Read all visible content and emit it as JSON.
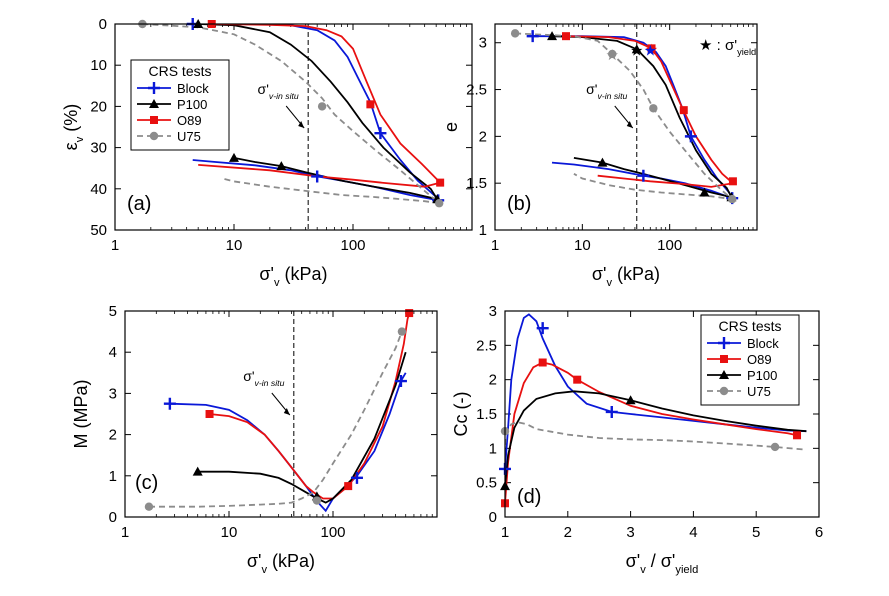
{
  "chart_data": [
    {
      "id": "a",
      "type": "line",
      "panel_label": "(a)",
      "xscale": "log",
      "xlim": [
        1,
        1000
      ],
      "ylim": [
        50,
        0
      ],
      "xticks": [
        1,
        10,
        100
      ],
      "xtick_labels": [
        "1",
        "10",
        "100"
      ],
      "yticks": [
        0,
        10,
        20,
        30,
        40,
        50
      ],
      "ytick_labels": [
        "0",
        "10",
        "20",
        "30",
        "40",
        "50"
      ],
      "xlabel": "σ'",
      "xlabel_sub": "v",
      "xlabel_tail": " (kPa)",
      "ylabel": "ε",
      "ylabel_sub": "v",
      "ylabel_tail": " (%)",
      "legend": {
        "title": "CRS tests",
        "placement": "left-middle"
      },
      "annotation": {
        "text": "σ'",
        "sub": "v-in situ",
        "x": 41
      },
      "vline_x": 42,
      "series": [
        {
          "name": "Block",
          "color": "#0a18d8",
          "dash": "",
          "marker": "plus",
          "x": [
            4.5,
            15,
            30,
            50,
            70,
            90,
            110,
            140,
            170,
            250,
            350,
            500,
            520,
            300,
            150,
            80,
            50,
            30,
            15,
            7,
            4.5
          ],
          "y": [
            0,
            0,
            0.3,
            1.5,
            4,
            8,
            13,
            19,
            26.5,
            33,
            38,
            42,
            42.8,
            41.5,
            39.5,
            38,
            37,
            35.5,
            34.3,
            33.5,
            33
          ],
          "markers_x": [
            4.5,
            170,
            520,
            50
          ],
          "markers_y": [
            0,
            26.5,
            42.8,
            37
          ]
        },
        {
          "name": "P100",
          "color": "#000000",
          "dash": "",
          "marker": "triangle",
          "x": [
            5,
            10,
            20,
            30,
            45,
            65,
            90,
            120,
            180,
            300,
            450,
            510,
            300,
            150,
            80,
            40,
            25,
            15,
            10
          ],
          "y": [
            0,
            0.3,
            2,
            5,
            9,
            14,
            19,
            24,
            30,
            36,
            40,
            42.5,
            41,
            39.5,
            38,
            36,
            34.5,
            33.5,
            32.5
          ],
          "markers_x": [
            5,
            510,
            10,
            25
          ],
          "markers_y": [
            0,
            42.5,
            32.5,
            34.5
          ]
        },
        {
          "name": "O89",
          "color": "#e81010",
          "dash": "",
          "marker": "square",
          "x": [
            6.5,
            20,
            40,
            60,
            80,
            100,
            130,
            170,
            250,
            380,
            540,
            400,
            200,
            100,
            50,
            20,
            5
          ],
          "y": [
            0,
            0.2,
            0.5,
            1.5,
            3,
            6,
            14,
            22,
            29,
            34,
            38.5,
            39.5,
            38.7,
            37.8,
            37,
            35.5,
            34.2
          ],
          "markers_x": [
            6.5,
            140,
            540
          ],
          "markers_y": [
            0,
            19.5,
            38.5
          ]
        },
        {
          "name": "U75",
          "color": "#8c8c8c",
          "dash": "6,4",
          "marker": "circle",
          "x": [
            1.7,
            5,
            10,
            15,
            25,
            40,
            55,
            70,
            100,
            160,
            250,
            400,
            530,
            400,
            250,
            150,
            80,
            40,
            20,
            10,
            8
          ],
          "y": [
            0,
            0.8,
            2.5,
            5,
            9,
            14,
            18,
            22,
            26,
            31,
            35.5,
            40.5,
            43.5,
            43,
            42.5,
            42,
            41.5,
            40.5,
            39.5,
            38.2,
            37.5
          ],
          "markers_x": [
            1.7,
            55,
            530
          ],
          "markers_y": [
            0,
            20,
            43.5
          ]
        }
      ]
    },
    {
      "id": "b",
      "type": "line",
      "panel_label": "(b)",
      "xscale": "log",
      "xlim": [
        1,
        1000
      ],
      "ylim": [
        1,
        3.2
      ],
      "xticks": [
        1,
        10,
        100
      ],
      "xtick_labels": [
        "1",
        "10",
        "100"
      ],
      "yticks": [
        1,
        1.5,
        2,
        2.5,
        3
      ],
      "ytick_labels": [
        "1",
        "1.5",
        "2",
        "2.5",
        "3"
      ],
      "xlabel": "σ'",
      "xlabel_sub": "v",
      "xlabel_tail": " (kPa)",
      "ylabel": "e",
      "ylabel_sub": "",
      "ylabel_tail": "",
      "yield_note": {
        "text": "★ : σ'",
        "sub": "yield"
      },
      "annotation": {
        "text": "σ'",
        "sub": "v-in situ",
        "x": 41
      },
      "vline_x": 42,
      "yield_points": [
        {
          "x": 22,
          "y": 2.88,
          "color": "#8c8c8c"
        },
        {
          "x": 42,
          "y": 2.93,
          "color": "#000000"
        },
        {
          "x": 62,
          "y": 2.94,
          "color": "#e81010"
        },
        {
          "x": 60,
          "y": 2.93,
          "color": "#0a18d8"
        }
      ],
      "series": [
        {
          "name": "Block",
          "color": "#0a18d8",
          "dash": "",
          "marker": "plus",
          "x": [
            2.7,
            10,
            30,
            50,
            70,
            90,
            110,
            140,
            175,
            250,
            350,
            480,
            520,
            300,
            150,
            80,
            50,
            20,
            8,
            4.5
          ],
          "y": [
            3.07,
            3.07,
            3.06,
            3.0,
            2.9,
            2.75,
            2.55,
            2.3,
            2.0,
            1.75,
            1.55,
            1.4,
            1.34,
            1.42,
            1.5,
            1.55,
            1.58,
            1.65,
            1.7,
            1.72
          ],
          "markers_x": [
            2.7,
            175,
            520,
            50
          ],
          "markers_y": [
            3.07,
            2.0,
            1.34,
            1.58
          ]
        },
        {
          "name": "P100",
          "color": "#000000",
          "dash": "",
          "marker": "triangle",
          "x": [
            4.5,
            10,
            25,
            42,
            65,
            90,
            130,
            200,
            300,
            450,
            510,
            300,
            150,
            60,
            30,
            17,
            8
          ],
          "y": [
            3.07,
            3.06,
            3.02,
            2.93,
            2.75,
            2.55,
            2.2,
            1.85,
            1.6,
            1.45,
            1.35,
            1.4,
            1.48,
            1.58,
            1.65,
            1.72,
            1.77
          ],
          "markers_x": [
            4.5,
            42,
            250,
            510,
            17
          ],
          "markers_y": [
            3.07,
            2.93,
            1.4,
            1.35,
            1.72
          ]
        },
        {
          "name": "O89",
          "color": "#e81010",
          "dash": "",
          "marker": "square",
          "x": [
            6.5,
            20,
            40,
            62,
            80,
            100,
            140,
            200,
            300,
            400,
            530,
            300,
            150,
            60,
            30,
            15
          ],
          "y": [
            3.07,
            3.06,
            3.02,
            2.94,
            2.8,
            2.6,
            2.3,
            2.0,
            1.75,
            1.6,
            1.5,
            1.46,
            1.49,
            1.52,
            1.55,
            1.58
          ],
          "markers_x": [
            6.5,
            62,
            145,
            530
          ],
          "markers_y": [
            3.07,
            2.94,
            2.28,
            1.52
          ]
        },
        {
          "name": "U75",
          "color": "#8c8c8c",
          "dash": "6,4",
          "marker": "circle",
          "x": [
            1.7,
            8,
            15,
            22,
            35,
            50,
            65,
            100,
            150,
            250,
            400,
            520,
            300,
            150,
            80,
            40,
            20,
            10,
            8
          ],
          "y": [
            3.1,
            3.07,
            3.02,
            2.88,
            2.7,
            2.5,
            2.3,
            2.05,
            1.85,
            1.6,
            1.42,
            1.33,
            1.36,
            1.38,
            1.4,
            1.43,
            1.48,
            1.55,
            1.6
          ],
          "markers_x": [
            1.7,
            22,
            65,
            520
          ],
          "markers_y": [
            3.1,
            2.88,
            2.3,
            1.33
          ]
        }
      ]
    },
    {
      "id": "c",
      "type": "line",
      "panel_label": "(c)",
      "xscale": "log",
      "xlim": [
        1,
        1000
      ],
      "ylim": [
        0,
        5
      ],
      "xticks": [
        1,
        10,
        100
      ],
      "xtick_labels": [
        "1",
        "10",
        "100"
      ],
      "yticks": [
        0,
        1,
        2,
        3,
        4,
        5
      ],
      "ytick_labels": [
        "0",
        "1",
        "2",
        "3",
        "4",
        "5"
      ],
      "xlabel": "σ'",
      "xlabel_sub": "v",
      "xlabel_tail": " (kPa)",
      "ylabel": "M (MPa)",
      "ylabel_sub": "",
      "ylabel_tail": "",
      "annotation": {
        "text": "σ'",
        "sub": "v-in situ",
        "x": 41
      },
      "vline_x": 42,
      "series": [
        {
          "name": "Block",
          "color": "#0a18d8",
          "dash": "",
          "marker": "plus",
          "x": [
            2.7,
            6,
            10,
            15,
            22,
            30,
            40,
            55,
            65,
            75,
            85,
            100,
            130,
            170,
            250,
            350,
            450,
            500
          ],
          "y": [
            2.75,
            2.72,
            2.6,
            2.35,
            2.0,
            1.6,
            1.2,
            0.75,
            0.5,
            0.3,
            0.15,
            0.45,
            0.7,
            1.0,
            1.6,
            2.5,
            3.3,
            3.5
          ],
          "markers_x": [
            2.7,
            170,
            450
          ],
          "markers_y": [
            2.75,
            0.95,
            3.3
          ]
        },
        {
          "name": "O89",
          "color": "#e81010",
          "dash": "",
          "marker": "square",
          "x": [
            6.5,
            10,
            15,
            22,
            30,
            40,
            55,
            65,
            80,
            100,
            140,
            200,
            300,
            400,
            480,
            520,
            540
          ],
          "y": [
            2.5,
            2.45,
            2.3,
            2.0,
            1.6,
            1.2,
            0.75,
            0.6,
            0.45,
            0.45,
            0.75,
            1.3,
            2.2,
            3.3,
            4.2,
            4.8,
            4.95
          ],
          "markers_x": [
            6.5,
            140,
            540
          ],
          "markers_y": [
            2.5,
            0.75,
            4.95
          ]
        },
        {
          "name": "P100",
          "color": "#000000",
          "dash": "",
          "marker": "triangle",
          "x": [
            5,
            10,
            20,
            30,
            40,
            55,
            70,
            85,
            100,
            150,
            250,
            400,
            500
          ],
          "y": [
            1.1,
            1.1,
            1.05,
            0.95,
            0.8,
            0.6,
            0.45,
            0.35,
            0.45,
            0.9,
            1.9,
            3.2,
            4.0
          ],
          "markers_x": [
            5,
            70
          ],
          "markers_y": [
            1.1,
            0.5
          ]
        },
        {
          "name": "U75",
          "color": "#8c8c8c",
          "dash": "6,4",
          "marker": "circle",
          "x": [
            1.7,
            5,
            10,
            20,
            30,
            40,
            50,
            65,
            80,
            100,
            150,
            200,
            300,
            400,
            460
          ],
          "y": [
            0.25,
            0.25,
            0.27,
            0.3,
            0.32,
            0.35,
            0.45,
            0.6,
            0.9,
            1.3,
            2.0,
            2.6,
            3.5,
            4.1,
            4.5
          ],
          "markers_x": [
            1.7,
            70,
            460
          ],
          "markers_y": [
            0.25,
            0.4,
            4.5
          ]
        }
      ]
    },
    {
      "id": "d",
      "type": "line",
      "panel_label": "(d)",
      "xscale": "linear",
      "xlim": [
        1,
        6
      ],
      "ylim": [
        0,
        3
      ],
      "xticks": [
        1,
        2,
        3,
        4,
        5,
        6
      ],
      "xtick_labels": [
        "1",
        "2",
        "3",
        "4",
        "5",
        "6"
      ],
      "yticks": [
        0,
        0.5,
        1,
        1.5,
        2,
        2.5,
        3
      ],
      "ytick_labels": [
        "0",
        "0.5",
        "1",
        "1.5",
        "2",
        "2.5",
        "3"
      ],
      "xlabel": "σ'",
      "xlabel_sub": "v",
      "xlabel_tail": " / σ'",
      "xlabel_sub2": "yield",
      "ylabel": "Cc (-)",
      "ylabel_sub": "",
      "ylabel_tail": "",
      "legend": {
        "title": "CRS tests",
        "placement": "top-right"
      },
      "series": [
        {
          "name": "Block",
          "color": "#0a18d8",
          "dash": "",
          "marker": "plus",
          "x": [
            1.0,
            1.05,
            1.1,
            1.2,
            1.3,
            1.38,
            1.5,
            1.6,
            1.8,
            2.0,
            2.3,
            2.7,
            3.0,
            3.5,
            4.0,
            4.5,
            5.0,
            5.5,
            5.8
          ],
          "y": [
            0.7,
            1.3,
            2.0,
            2.6,
            2.9,
            2.95,
            2.85,
            2.6,
            2.2,
            1.9,
            1.65,
            1.53,
            1.5,
            1.45,
            1.4,
            1.35,
            1.3,
            1.26,
            1.25
          ],
          "markers_x": [
            1.0,
            1.6,
            2.7
          ],
          "markers_y": [
            0.7,
            2.75,
            1.53
          ]
        },
        {
          "name": "O89",
          "color": "#e81010",
          "dash": "",
          "marker": "square",
          "x": [
            1.0,
            1.05,
            1.15,
            1.3,
            1.45,
            1.6,
            1.75,
            2.0,
            2.15,
            2.5,
            3.0,
            3.5,
            4.0,
            4.5,
            5.0,
            5.5,
            5.65
          ],
          "y": [
            0.2,
            0.8,
            1.5,
            1.95,
            2.18,
            2.25,
            2.22,
            2.1,
            2.0,
            1.82,
            1.62,
            1.5,
            1.42,
            1.35,
            1.28,
            1.22,
            1.19
          ],
          "markers_x": [
            1.0,
            1.6,
            2.15,
            5.65
          ],
          "markers_y": [
            0.2,
            2.25,
            2.0,
            1.19
          ]
        },
        {
          "name": "P100",
          "color": "#000000",
          "dash": "",
          "marker": "triangle",
          "x": [
            1.0,
            1.05,
            1.15,
            1.3,
            1.5,
            1.8,
            2.1,
            2.5,
            3.0,
            3.5,
            4.0,
            4.5,
            5.0,
            5.5,
            5.8
          ],
          "y": [
            0.45,
            0.9,
            1.3,
            1.55,
            1.72,
            1.8,
            1.83,
            1.8,
            1.7,
            1.58,
            1.48,
            1.4,
            1.33,
            1.27,
            1.25
          ],
          "markers_x": [
            1.0,
            3.0
          ],
          "markers_y": [
            0.45,
            1.7
          ]
        },
        {
          "name": "U75",
          "color": "#8c8c8c",
          "dash": "6,4",
          "marker": "circle",
          "x": [
            1.0,
            1.03,
            1.1,
            1.2,
            1.35,
            1.5,
            2.0,
            2.5,
            3.0,
            3.5,
            4.0,
            4.5,
            5.0,
            5.3,
            5.8
          ],
          "y": [
            1.05,
            1.25,
            1.35,
            1.38,
            1.35,
            1.28,
            1.2,
            1.15,
            1.13,
            1.12,
            1.1,
            1.07,
            1.04,
            1.02,
            0.98
          ],
          "markers_x": [
            1.0,
            5.3
          ],
          "markers_y": [
            1.25,
            1.02
          ]
        }
      ]
    }
  ]
}
